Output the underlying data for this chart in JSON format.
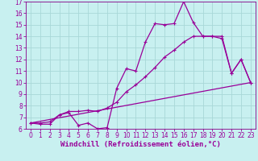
{
  "xlabel": "Windchill (Refroidissement éolien,°C)",
  "bg_color": "#c8f0f0",
  "grid_color": "#a8d8d8",
  "line_color": "#990099",
  "spine_color": "#880088",
  "xlim": [
    -0.5,
    23.5
  ],
  "ylim": [
    6,
    17
  ],
  "xticks": [
    0,
    1,
    2,
    3,
    4,
    5,
    6,
    7,
    8,
    9,
    10,
    11,
    12,
    13,
    14,
    15,
    16,
    17,
    18,
    19,
    20,
    21,
    22,
    23
  ],
  "yticks": [
    6,
    7,
    8,
    9,
    10,
    11,
    12,
    13,
    14,
    15,
    16,
    17
  ],
  "line1_x": [
    0,
    1,
    2,
    3,
    4,
    5,
    6,
    7,
    8,
    9,
    10,
    11,
    12,
    13,
    14,
    15,
    16,
    17,
    18,
    19,
    20,
    21,
    22,
    23
  ],
  "line1_y": [
    6.5,
    6.4,
    6.4,
    7.2,
    7.4,
    6.3,
    6.5,
    6.0,
    6.1,
    9.5,
    11.2,
    11.0,
    13.5,
    15.1,
    15.0,
    15.1,
    17.0,
    15.2,
    14.0,
    14.0,
    13.8,
    10.8,
    12.0,
    10.0
  ],
  "line2_x": [
    0,
    1,
    2,
    3,
    4,
    5,
    6,
    7,
    8,
    9,
    10,
    11,
    12,
    13,
    14,
    15,
    16,
    17,
    18,
    19,
    20,
    21,
    22,
    23
  ],
  "line2_y": [
    6.5,
    6.5,
    6.6,
    7.2,
    7.5,
    7.5,
    7.6,
    7.5,
    7.8,
    8.3,
    9.2,
    9.8,
    10.5,
    11.3,
    12.2,
    12.8,
    13.5,
    14.0,
    14.0,
    14.0,
    14.0,
    10.8,
    12.0,
    10.0
  ],
  "line3_x": [
    0,
    23
  ],
  "line3_y": [
    6.5,
    10.0
  ],
  "tick_fontsize": 5.5,
  "label_fontsize": 6.5
}
